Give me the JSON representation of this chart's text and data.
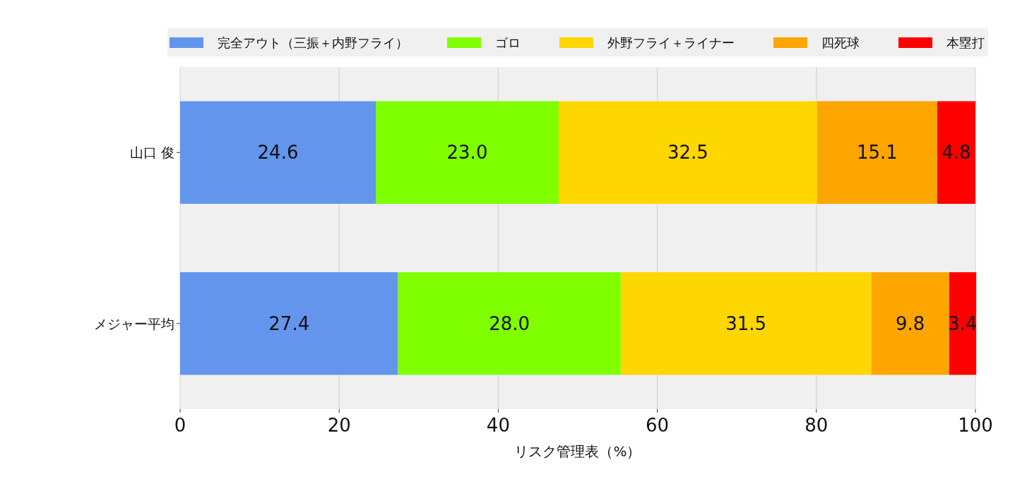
{
  "chart_data": {
    "type": "bar",
    "orientation": "horizontal",
    "stacked": true,
    "categories": [
      "山口 俊",
      "メジャー平均"
    ],
    "series": [
      {
        "name": "完全アウト（三振＋内野フライ）",
        "color": "#6495ed",
        "values": [
          24.6,
          27.4
        ],
        "value_labels": [
          "24.6",
          "27.4"
        ]
      },
      {
        "name": "ゴロ",
        "color": "#7fff00",
        "values": [
          23.0,
          28.0
        ],
        "value_labels": [
          "23.0",
          "28.0"
        ]
      },
      {
        "name": "外野フライ＋ライナー",
        "color": "#ffd700",
        "values": [
          32.5,
          31.5
        ],
        "value_labels": [
          "32.5",
          "31.5"
        ]
      },
      {
        "name": "四死球",
        "color": "#ffa500",
        "values": [
          15.1,
          9.8
        ],
        "value_labels": [
          "15.1",
          "9.8"
        ]
      },
      {
        "name": "本塁打",
        "color": "#ff0000",
        "values": [
          4.8,
          3.4
        ],
        "value_labels": [
          "4.8",
          "3.4"
        ]
      }
    ],
    "xlim": [
      0,
      100
    ],
    "xticks": [
      0,
      20,
      40,
      60,
      80,
      100
    ],
    "xlabel": "リスク管理表（%）",
    "grid": "x",
    "legend": "top"
  }
}
